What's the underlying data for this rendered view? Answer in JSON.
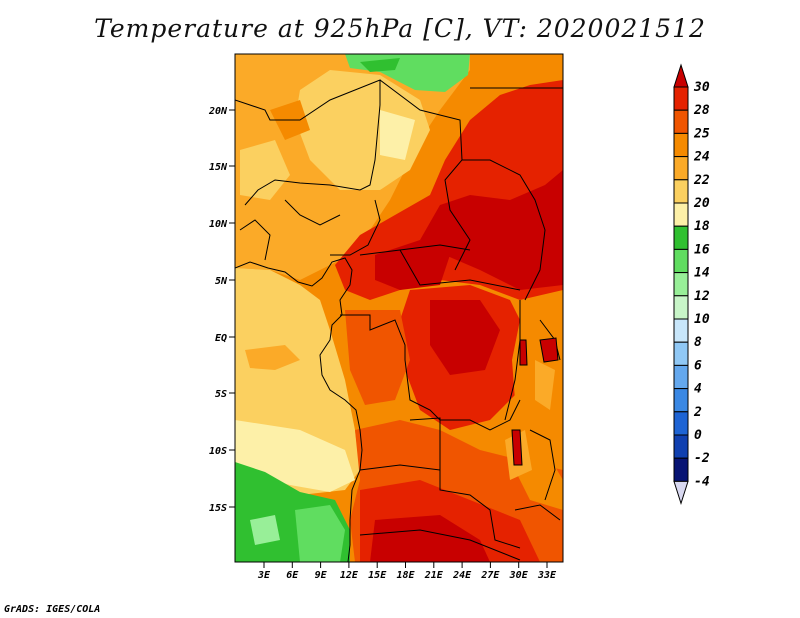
{
  "title": "Temperature at 925hPa [C], VT: 2020021512",
  "credit": "GrADS: IGES/COLA",
  "map": {
    "lat_ticks": [
      "20N",
      "15N",
      "10N",
      "5N",
      "EQ",
      "5S",
      "10S",
      "15S"
    ],
    "lon_ticks": [
      "3E",
      "6E",
      "9E",
      "12E",
      "15E",
      "18E",
      "21E",
      "24E",
      "27E",
      "30E",
      "33E"
    ]
  },
  "colorbar": {
    "labels": [
      "30",
      "28",
      "25",
      "24",
      "22",
      "20",
      "18",
      "16",
      "14",
      "12",
      "10",
      "8",
      "6",
      "4",
      "2",
      "0",
      "-2",
      "-4"
    ],
    "colors": [
      "#c80000",
      "#e52200",
      "#f05500",
      "#f58a00",
      "#fbaa28",
      "#fbd060",
      "#fdf0a8",
      "#30c030",
      "#60dd60",
      "#98ef98",
      "#c8f5c8",
      "#c8e6fa",
      "#90c8f5",
      "#64a8ee",
      "#3a88e4",
      "#1e64d4",
      "#1040b0",
      "#081474"
    ],
    "top_color": "#c80000",
    "bottom_color": "#d8d8f0"
  }
}
